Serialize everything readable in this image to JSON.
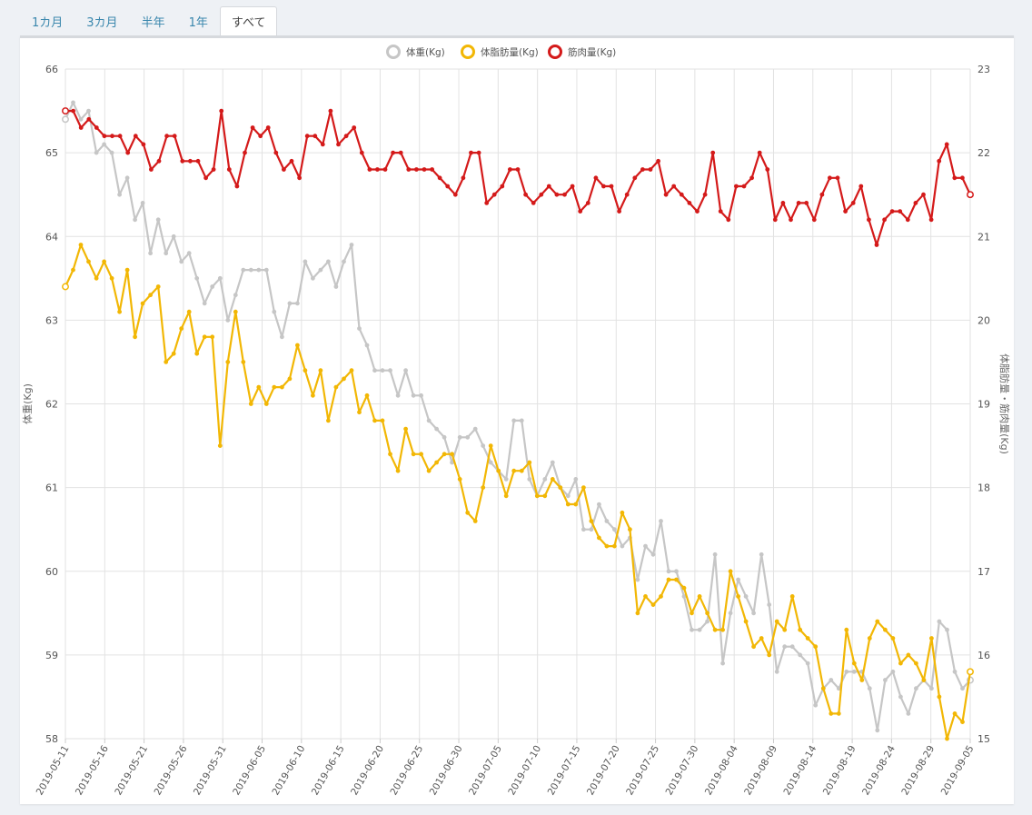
{
  "tabs": [
    {
      "label": "1カ月",
      "active": false
    },
    {
      "label": "3カ月",
      "active": false
    },
    {
      "label": "半年",
      "active": false
    },
    {
      "label": "1年",
      "active": false
    },
    {
      "label": "すべて",
      "active": true
    }
  ],
  "chart_data": {
    "type": "line",
    "x_tick_labels": [
      "2019-05-11",
      "2019-05-16",
      "2019-05-21",
      "2019-05-26",
      "2019-05-31",
      "2019-06-05",
      "2019-06-10",
      "2019-06-15",
      "2019-06-20",
      "2019-06-25",
      "2019-06-30",
      "2019-07-05",
      "2019-07-10",
      "2019-07-15",
      "2019-07-20",
      "2019-07-25",
      "2019-07-30",
      "2019-08-04",
      "2019-08-09",
      "2019-08-14",
      "2019-08-19",
      "2019-08-24",
      "2019-08-29",
      "2019-09-05"
    ],
    "x_range": [
      "2019-05-11",
      "2019-09-05"
    ],
    "y_left": {
      "label": "体重(Kg)",
      "min": 58,
      "max": 66,
      "ticks": [
        58,
        59,
        60,
        61,
        62,
        63,
        64,
        65,
        66
      ]
    },
    "y_right": {
      "label": "体脂肪量・筋肉量(Kg)",
      "min": 15,
      "max": 23,
      "ticks": [
        15,
        16,
        17,
        18,
        19,
        20,
        21,
        22,
        23
      ]
    },
    "grid": true,
    "legend_position": "top-center",
    "series": [
      {
        "name": "体重(Kg)",
        "axis": "left",
        "color": "#c6c6c6",
        "values": [
          65.4,
          65.6,
          65.4,
          65.5,
          65.0,
          65.1,
          65.0,
          64.5,
          64.7,
          64.2,
          64.4,
          63.8,
          64.2,
          63.8,
          64.0,
          63.7,
          63.8,
          63.5,
          63.2,
          63.4,
          63.5,
          63.0,
          63.3,
          63.6,
          63.6,
          63.6,
          63.6,
          63.1,
          62.8,
          63.2,
          63.2,
          63.7,
          63.5,
          63.6,
          63.7,
          63.4,
          63.7,
          63.9,
          62.9,
          62.7,
          62.4,
          62.4,
          62.4,
          62.1,
          62.4,
          62.1,
          62.1,
          61.8,
          61.7,
          61.6,
          61.3,
          61.6,
          61.6,
          61.7,
          61.5,
          61.3,
          61.2,
          61.1,
          61.8,
          61.8,
          61.1,
          60.9,
          61.1,
          61.3,
          61.0,
          60.9,
          61.1,
          60.5,
          60.5,
          60.8,
          60.6,
          60.5,
          60.3,
          60.4,
          59.9,
          60.3,
          60.2,
          60.6,
          60.0,
          60.0,
          59.7,
          59.3,
          59.3,
          59.4,
          60.2,
          58.9,
          59.5,
          59.9,
          59.7,
          59.5,
          60.2,
          59.6,
          58.8,
          59.1,
          59.1,
          59.0,
          58.9,
          58.4,
          58.6,
          58.7,
          58.6,
          58.8,
          58.8,
          58.8,
          58.6,
          58.1,
          58.7,
          58.8,
          58.5,
          58.3,
          58.6,
          58.7,
          58.6,
          59.4,
          59.3,
          58.8,
          58.6,
          58.7
        ]
      },
      {
        "name": "体脂肪量(Kg)",
        "axis": "right",
        "color": "#f2b705",
        "values": [
          20.4,
          20.6,
          20.9,
          20.7,
          20.5,
          20.7,
          20.5,
          20.1,
          20.6,
          19.8,
          20.2,
          20.3,
          20.4,
          19.5,
          19.6,
          19.9,
          20.1,
          19.6,
          19.8,
          19.8,
          18.5,
          19.5,
          20.1,
          19.5,
          19.0,
          19.2,
          19.0,
          19.2,
          19.2,
          19.3,
          19.7,
          19.4,
          19.1,
          19.4,
          18.8,
          19.2,
          19.3,
          19.4,
          18.9,
          19.1,
          18.8,
          18.8,
          18.4,
          18.2,
          18.7,
          18.4,
          18.4,
          18.2,
          18.3,
          18.4,
          18.4,
          18.1,
          17.7,
          17.6,
          18.0,
          18.5,
          18.2,
          17.9,
          18.2,
          18.2,
          18.3,
          17.9,
          17.9,
          18.1,
          18.0,
          17.8,
          17.8,
          18.0,
          17.6,
          17.4,
          17.3,
          17.3,
          17.7,
          17.5,
          16.5,
          16.7,
          16.6,
          16.7,
          16.9,
          16.9,
          16.8,
          16.5,
          16.7,
          16.5,
          16.3,
          16.3,
          17.0,
          16.7,
          16.4,
          16.1,
          16.2,
          16.0,
          16.4,
          16.3,
          16.7,
          16.3,
          16.2,
          16.1,
          15.6,
          15.3,
          15.3,
          16.3,
          15.9,
          15.7,
          16.2,
          16.4,
          16.3,
          16.2,
          15.9,
          16.0,
          15.9,
          15.7,
          16.2,
          15.5,
          15.0,
          15.3,
          15.2,
          15.8
        ]
      },
      {
        "name": "筋肉量(Kg)",
        "axis": "right",
        "color": "#d41a1a",
        "values": [
          22.5,
          22.5,
          22.3,
          22.4,
          22.3,
          22.2,
          22.2,
          22.2,
          22.0,
          22.2,
          22.1,
          21.8,
          21.9,
          22.2,
          22.2,
          21.9,
          21.9,
          21.9,
          21.7,
          21.8,
          22.5,
          21.8,
          21.6,
          22.0,
          22.3,
          22.2,
          22.3,
          22.0,
          21.8,
          21.9,
          21.7,
          22.2,
          22.2,
          22.1,
          22.5,
          22.1,
          22.2,
          22.3,
          22.0,
          21.8,
          21.8,
          21.8,
          22.0,
          22.0,
          21.8,
          21.8,
          21.8,
          21.8,
          21.7,
          21.6,
          21.5,
          21.7,
          22.0,
          22.0,
          21.4,
          21.5,
          21.6,
          21.8,
          21.8,
          21.5,
          21.4,
          21.5,
          21.6,
          21.5,
          21.5,
          21.6,
          21.3,
          21.4,
          21.7,
          21.6,
          21.6,
          21.3,
          21.5,
          21.7,
          21.8,
          21.8,
          21.9,
          21.5,
          21.6,
          21.5,
          21.4,
          21.3,
          21.5,
          22.0,
          21.3,
          21.2,
          21.6,
          21.6,
          21.7,
          22.0,
          21.8,
          21.2,
          21.4,
          21.2,
          21.4,
          21.4,
          21.2,
          21.5,
          21.7,
          21.7,
          21.3,
          21.4,
          21.6,
          21.2,
          20.9,
          21.2,
          21.3,
          21.3,
          21.2,
          21.4,
          21.5,
          21.2,
          21.9,
          22.1,
          21.7,
          21.7,
          21.5
        ]
      }
    ]
  }
}
